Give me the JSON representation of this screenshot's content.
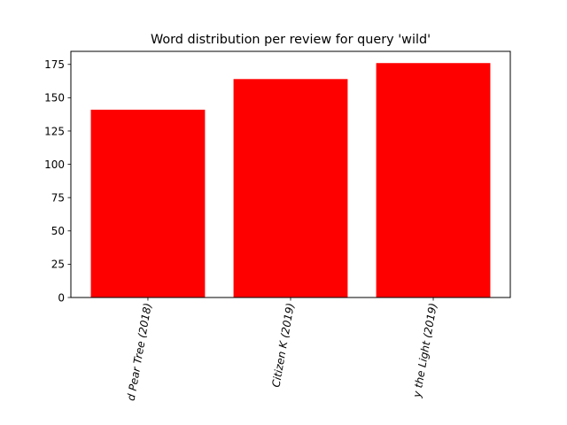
{
  "chart_data": {
    "type": "bar",
    "title": "Word distribution per review for query 'wild'",
    "xlabel": "",
    "ylabel": "",
    "categories": [
      "d Pear Tree (2018)",
      "Citizen K (2019)",
      "y the Light (2019)"
    ],
    "values": [
      141,
      164,
      176
    ],
    "ylim": [
      0,
      184.8
    ],
    "yticks": [
      0,
      25,
      50,
      75,
      100,
      125,
      150,
      175
    ],
    "bar_color": "#ff0000",
    "grid": false,
    "legend": "none"
  }
}
